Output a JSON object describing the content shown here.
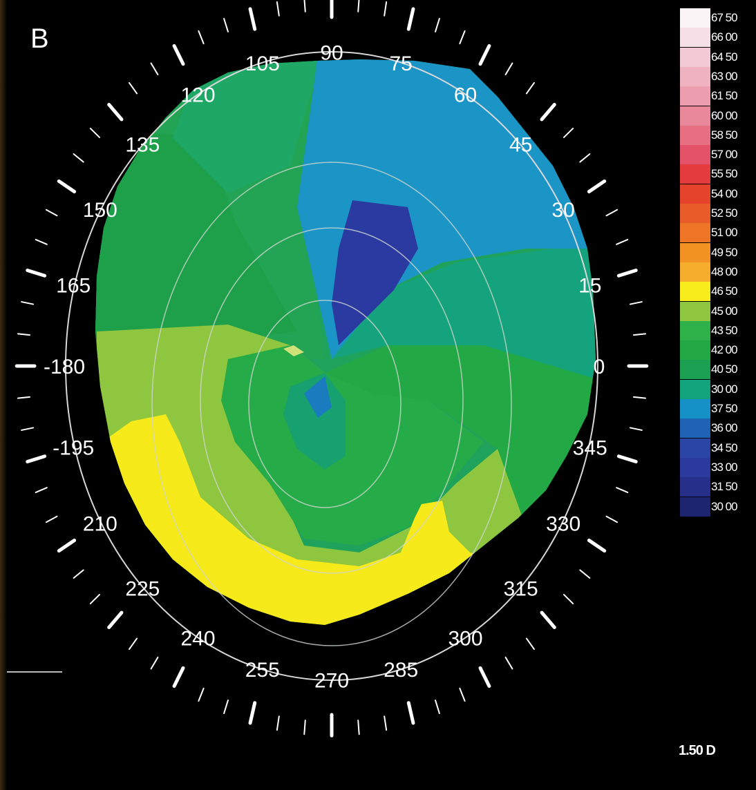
{
  "panel_letter": "B",
  "angle_labels": [
    "0",
    "15",
    "30",
    "45",
    "60",
    "75",
    "90",
    "105",
    "120",
    "135",
    "150",
    "165",
    "-180",
    "-195",
    "210",
    "225",
    "240",
    "255",
    "270",
    "285",
    "300",
    "315",
    "330",
    "345"
  ],
  "color_scale": [
    {
      "label": "67 50",
      "color": "#fbf4f7"
    },
    {
      "label": "66 00",
      "color": "#f7dfe8"
    },
    {
      "label": "64 50",
      "color": "#f3c9d5"
    },
    {
      "label": "63 00",
      "color": "#efb2c0"
    },
    {
      "label": "61 50",
      "color": "#ec9eae"
    },
    {
      "label": "60 00",
      "color": "#e9889a"
    },
    {
      "label": "58 50",
      "color": "#e66f82"
    },
    {
      "label": "57 00",
      "color": "#e4526a"
    },
    {
      "label": "55 50",
      "color": "#e43b3f"
    },
    {
      "label": "54 00",
      "color": "#e6432c"
    },
    {
      "label": "52 50",
      "color": "#e95b28"
    },
    {
      "label": "51 00",
      "color": "#ee7426"
    },
    {
      "label": "49 50",
      "color": "#f39324"
    },
    {
      "label": "48 00",
      "color": "#f6ad2c"
    },
    {
      "label": "46 50",
      "color": "#f8ec1c"
    },
    {
      "label": "45 00",
      "color": "#8ec63f"
    },
    {
      "label": "43 50",
      "color": "#2fb14a"
    },
    {
      "label": "42 00",
      "color": "#22a845"
    },
    {
      "label": "40 50",
      "color": "#1aa050"
    },
    {
      "label": "30 00",
      "color": "#13a37c"
    },
    {
      "label": "37 50",
      "color": "#1591c8"
    },
    {
      "label": "36 00",
      "color": "#1f63b4"
    },
    {
      "label": "34 50",
      "color": "#2a45a6"
    },
    {
      "label": "33 00",
      "color": "#2b3a9c"
    },
    {
      "label": "31 50",
      "color": "#26308a"
    },
    {
      "label": "30 00",
      "color": "#1d2570"
    }
  ],
  "step_label": "1.50 D"
}
